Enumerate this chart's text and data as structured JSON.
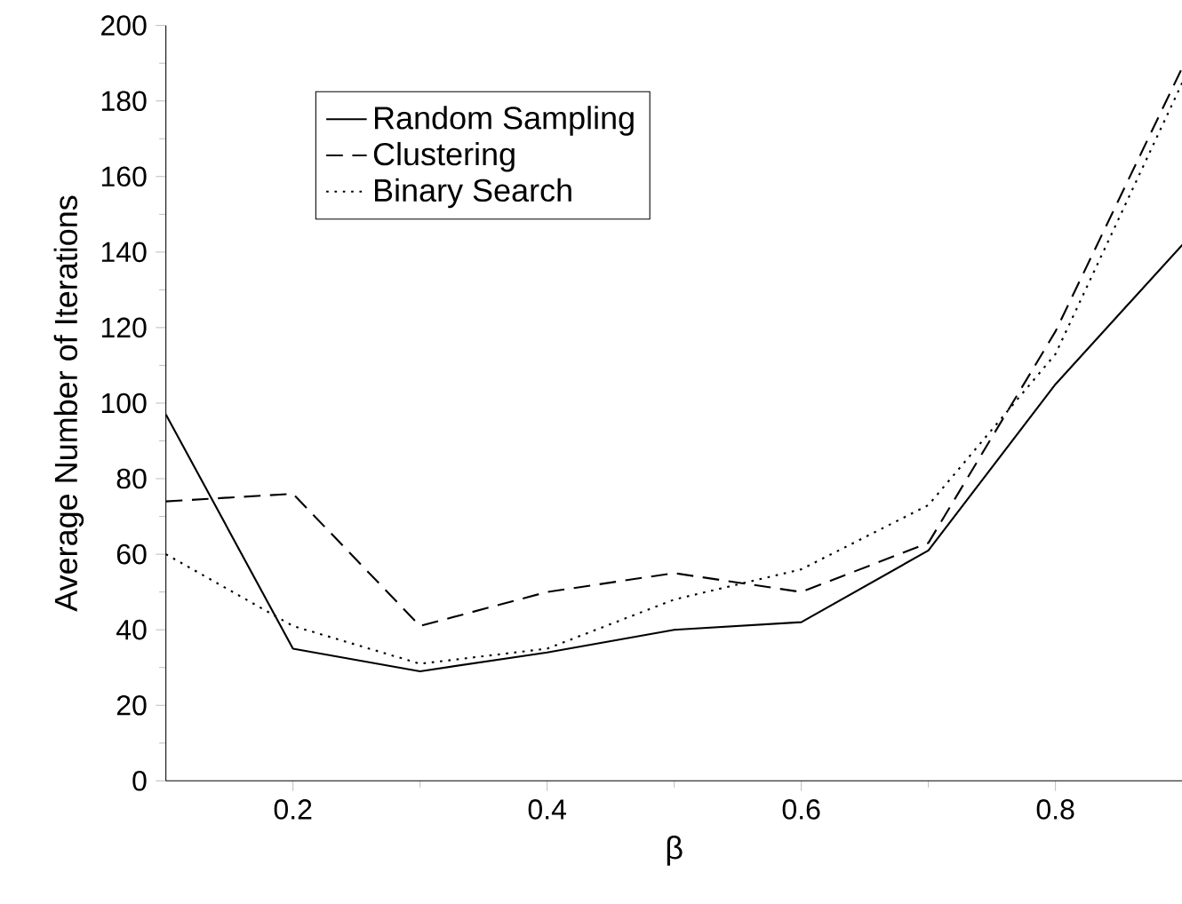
{
  "chart_data": {
    "type": "line",
    "xlabel": "β",
    "ylabel": "Average Number of Iterations",
    "x": [
      0.1,
      0.2,
      0.3,
      0.4,
      0.5,
      0.6,
      0.7,
      0.8,
      0.9
    ],
    "series": [
      {
        "name": "Random Sampling",
        "color": "#000000",
        "line_style": "solid",
        "values": [
          97,
          35,
          29,
          34,
          40,
          42,
          61,
          105,
          142
        ]
      },
      {
        "name": "Clustering",
        "color": "#000000",
        "line_style": "dashed",
        "values": [
          74,
          76,
          41,
          50,
          55,
          50,
          63,
          119,
          189
        ]
      },
      {
        "name": "Binary Search",
        "color": "#000000",
        "line_style": "dotted",
        "values": [
          60,
          41,
          31,
          35,
          48,
          56,
          73,
          113,
          185
        ]
      }
    ],
    "xlim": [
      0.1,
      0.9
    ],
    "ylim": [
      0,
      200
    ],
    "xticks": [
      0.2,
      0.4,
      0.6,
      0.8
    ],
    "yticks": [
      0,
      20,
      40,
      60,
      80,
      100,
      120,
      140,
      160,
      180,
      200
    ],
    "grid": false,
    "legend": "top left",
    "marker": "none"
  }
}
